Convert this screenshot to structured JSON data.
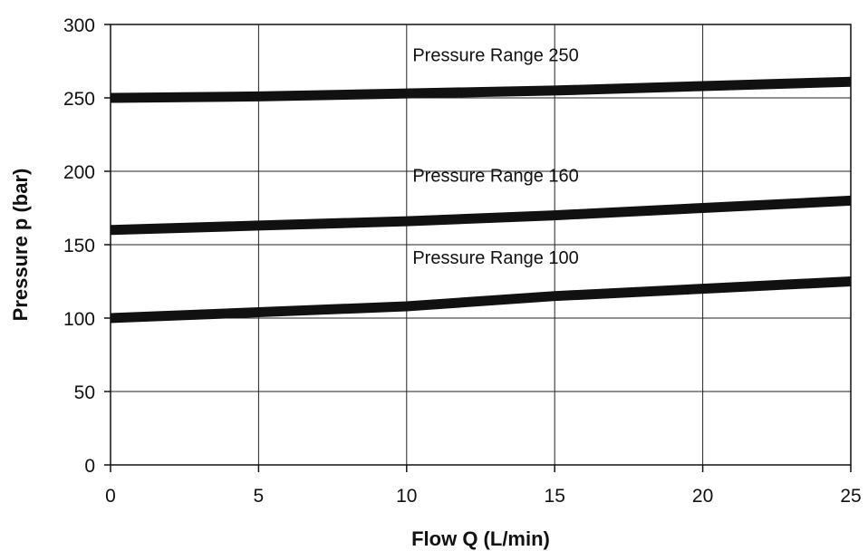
{
  "chart_data": {
    "type": "line",
    "title": "",
    "xlabel": "Flow Q (L/min)",
    "ylabel": "Pressure p (bar)",
    "xlim": [
      0,
      25
    ],
    "ylim": [
      0,
      300
    ],
    "xticks": [
      0,
      5,
      10,
      15,
      20,
      25
    ],
    "yticks": [
      0,
      50,
      100,
      150,
      200,
      250,
      300
    ],
    "grid": true,
    "legend": "none",
    "line_color": "#111111",
    "series": [
      {
        "x": [
          0,
          5,
          10,
          15,
          20,
          25
        ],
        "values": [
          250,
          251,
          253,
          255,
          258,
          261
        ]
      },
      {
        "x": [
          0,
          5,
          10,
          15,
          20,
          25
        ],
        "values": [
          160,
          163,
          166,
          170,
          175,
          180
        ]
      },
      {
        "x": [
          0,
          5,
          10,
          15,
          20,
          25
        ],
        "values": [
          100,
          104,
          108,
          115,
          120,
          125
        ]
      }
    ],
    "annotations": [
      {
        "text": "Pressure Range 250",
        "x": 10.2,
        "y": 275
      },
      {
        "text": "Pressure Range 160",
        "x": 10.2,
        "y": 193
      },
      {
        "text": "Pressure Range 100",
        "x": 10.2,
        "y": 137
      }
    ]
  }
}
